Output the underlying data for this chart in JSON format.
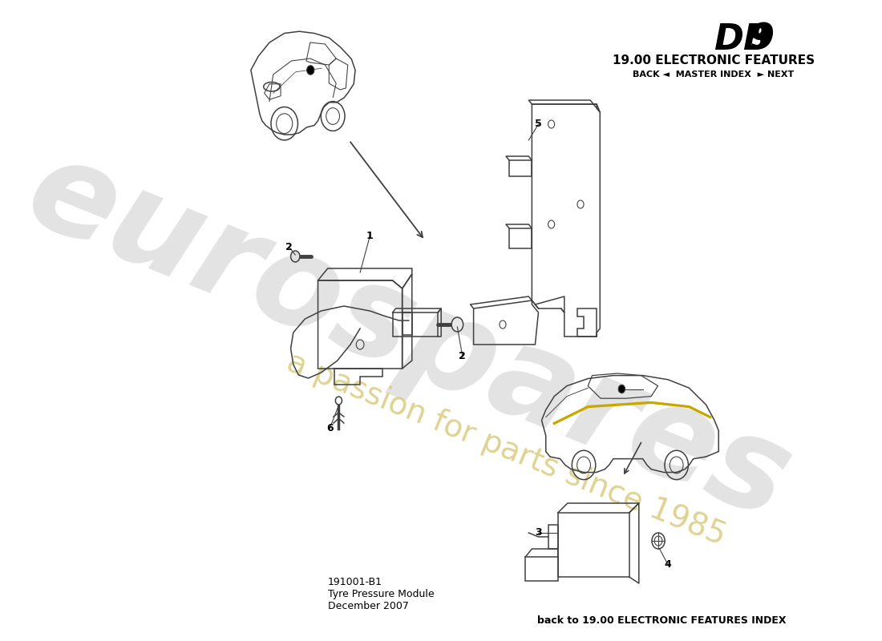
{
  "title_db9": "DB 9",
  "title_section": "19.00 ELECTRONIC FEATURES",
  "nav_text": "BACK ◄  MASTER INDEX  ► NEXT",
  "bottom_left_line1": "191001-B1",
  "bottom_left_line2": "Tyre Pressure Module",
  "bottom_left_line3": "December 2007",
  "bottom_right": "back to 19.00 ELECTRONIC FEATURES INDEX",
  "watermark_main": "eurospares",
  "watermark_sub": "a passion for parts since 1985",
  "bg_color": "#ffffff",
  "line_color": "#404040",
  "wm_gray": "#cccccc",
  "wm_yellow": "#d8cc80"
}
